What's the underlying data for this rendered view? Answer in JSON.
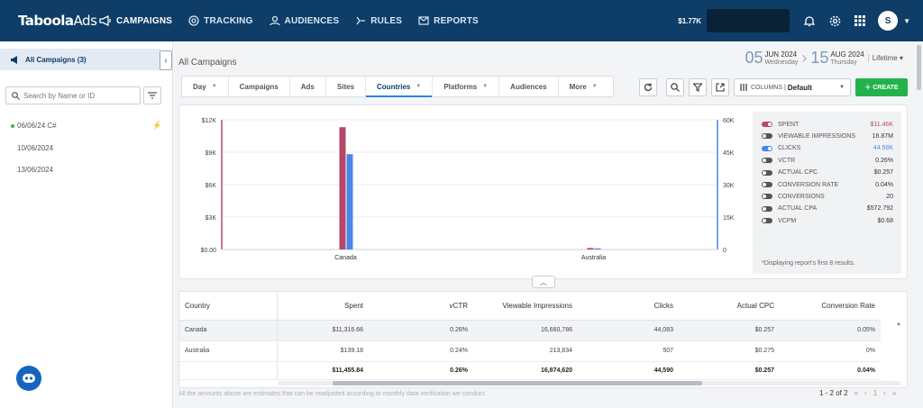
{
  "brand": {
    "logo_main": "Taboola",
    "logo_ads": "Ads"
  },
  "nav": [
    {
      "label": "CAMPAIGNS",
      "icon": "megaphone-icon",
      "active": true
    },
    {
      "label": "TRACKING",
      "icon": "target-icon"
    },
    {
      "label": "AUDIENCES",
      "icon": "person-icon"
    },
    {
      "label": "RULES",
      "icon": "rules-icon"
    },
    {
      "label": "REPORTS",
      "icon": "mail-icon"
    }
  ],
  "topbar": {
    "balance": "$1.77K",
    "avatar_letter": "S"
  },
  "sidebar": {
    "header": "All Campaigns (3)",
    "search_placeholder": "Search by Name or ID",
    "items": [
      "06/06/24 C#",
      "10/06/2024",
      "13/06/2024"
    ]
  },
  "main": {
    "title": "All Campaigns",
    "date_start": {
      "day": "05",
      "month": "JUN 2024",
      "weekday": "Wednesday"
    },
    "date_end": {
      "day": "15",
      "month": "AUG 2024",
      "weekday": "Thursday"
    },
    "range_label": "Lifetime"
  },
  "tabs": [
    {
      "label": "Day",
      "chevron": true
    },
    {
      "label": "Campaigns"
    },
    {
      "label": "Ads"
    },
    {
      "label": "Sites"
    },
    {
      "label": "Countries",
      "chevron": true,
      "active": true
    },
    {
      "label": "Platforms",
      "chevron": true
    },
    {
      "label": "Audiences"
    },
    {
      "label": "More",
      "chevron": true
    }
  ],
  "toolbar": {
    "columns_label": "COLUMNS |",
    "columns_value": "Default",
    "create_label": "CREATE"
  },
  "chart_data": {
    "type": "bar",
    "categories": [
      "Canada",
      "Australia"
    ],
    "series": [
      {
        "name": "SPENT",
        "axis": "left",
        "color": "#b5486a",
        "values": [
          11316.66,
          139.18
        ]
      },
      {
        "name": "CLICKS",
        "axis": "right",
        "color": "#4a86e8",
        "values": [
          44083,
          507
        ]
      }
    ],
    "y_left": {
      "ticks": [
        "$0.00",
        "$3K",
        "$6K",
        "$9K",
        "$12K"
      ],
      "range": [
        0,
        12000
      ]
    },
    "y_right": {
      "ticks": [
        "0",
        "15K",
        "30K",
        "45K",
        "60K"
      ],
      "range": [
        0,
        60000
      ]
    }
  },
  "legend": {
    "items": [
      {
        "label": "Spent",
        "value": "$11.46K",
        "on": true,
        "color": "#b5486a"
      },
      {
        "label": "Viewable Impressions",
        "value": "16.87M",
        "on": false
      },
      {
        "label": "Clicks",
        "value": "44.59K",
        "on": true,
        "color": "#4a86e8"
      },
      {
        "label": "vCTR",
        "value": "0.26%",
        "on": false
      },
      {
        "label": "Actual CPC",
        "value": "$0.257",
        "on": false
      },
      {
        "label": "Conversion Rate",
        "value": "0.04%",
        "on": false
      },
      {
        "label": "Conversions",
        "value": "20",
        "on": false
      },
      {
        "label": "Actual CPA",
        "value": "$572.792",
        "on": false
      },
      {
        "label": "vCPM",
        "value": "$0.68",
        "on": false
      }
    ],
    "note": "*Displaying report's first 8 results."
  },
  "table": {
    "headers": [
      "Country",
      "Spent",
      "vCTR",
      "Viewable Impressions",
      "Clicks",
      "Actual CPC",
      "Conversion Rate"
    ],
    "rows": [
      [
        "Canada",
        "$11,316.66",
        "0.26%",
        "16,660,786",
        "44,083",
        "$0.257",
        "0.05%"
      ],
      [
        "Australia",
        "$139.18",
        "0.24%",
        "213,834",
        "507",
        "$0.275",
        "0%"
      ]
    ],
    "totals": [
      "",
      "$11,455.84",
      "0.26%",
      "16,874,620",
      "44,590",
      "$0.257",
      "0.04%"
    ]
  },
  "footer": {
    "note": "All the amounts above are estimates that can be readjusted according to monthly data verification we conduct.",
    "pager": "1 - 2 of 2"
  }
}
